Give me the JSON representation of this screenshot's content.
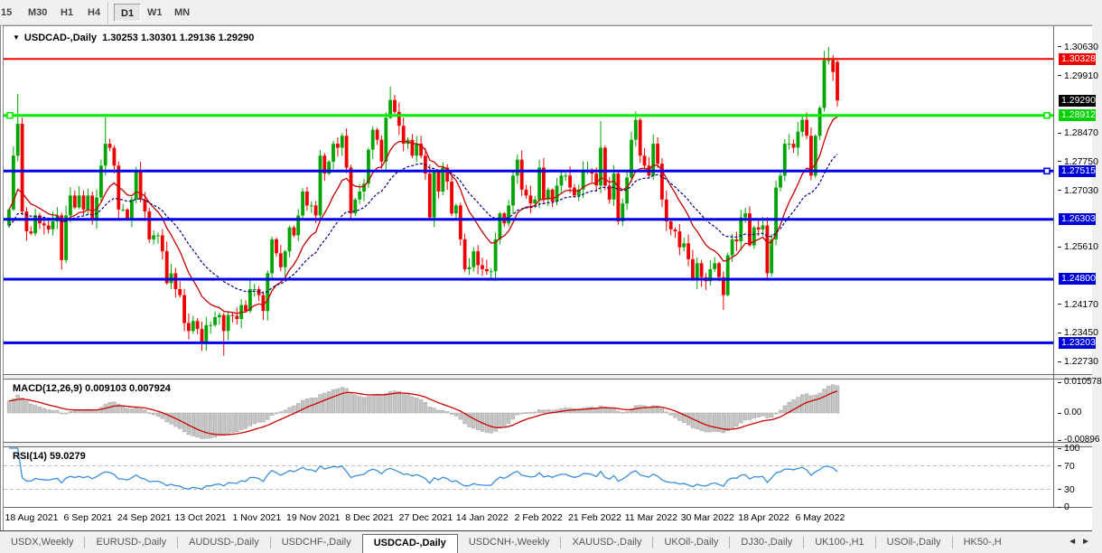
{
  "toolbar": {
    "timeframes": [
      {
        "label": "15",
        "active": false
      },
      {
        "label": "M30",
        "active": false
      },
      {
        "label": "H1",
        "active": false
      },
      {
        "label": "H4",
        "active": false
      },
      {
        "label": "D1",
        "active": true
      },
      {
        "label": "W1",
        "active": false
      },
      {
        "label": "MN",
        "active": false
      }
    ]
  },
  "header": {
    "symbol": "USDCAD-,Daily",
    "ohlc_text": "1.30253 1.30301 1.29136 1.29290"
  },
  "chart_data": {
    "type": "candlestick",
    "symbol": "USDCAD-",
    "timeframe": "Daily",
    "ohlc_values": {
      "open": 1.30253,
      "high": 1.30301,
      "low": 1.29136,
      "close": 1.2929
    },
    "closes": [
      1.2655,
      1.279,
      1.287,
      1.265,
      1.26,
      1.2595,
      1.264,
      1.262,
      1.2615,
      1.2605,
      1.2625,
      1.264,
      1.2528,
      1.264,
      1.269,
      1.266,
      1.269,
      1.2655,
      1.269,
      1.263,
      1.2685,
      1.2765,
      1.282,
      1.281,
      1.2765,
      1.2655,
      1.2655,
      1.263,
      1.268,
      1.275,
      1.268,
      1.265,
      1.258,
      1.259,
      1.259,
      1.255,
      1.247,
      1.2495,
      1.2455,
      1.244,
      1.237,
      1.235,
      1.2375,
      1.2355,
      1.232,
      1.2365,
      1.2365,
      1.2385,
      1.239,
      1.235,
      1.239,
      1.2388,
      1.238,
      1.2415,
      1.24,
      1.2455,
      1.2455,
      1.244,
      1.24,
      1.2495,
      1.258,
      1.2545,
      1.251,
      1.255,
      1.261,
      1.259,
      1.264,
      1.27,
      1.2665,
      1.2665,
      1.264,
      1.279,
      1.2745,
      1.2775,
      1.282,
      1.281,
      1.284,
      1.276,
      1.2645,
      1.268,
      1.27,
      1.272,
      1.2805,
      1.2855,
      1.283,
      1.2775,
      1.2885,
      1.293,
      1.29,
      1.2865,
      1.282,
      1.283,
      1.279,
      1.282,
      1.279,
      1.2745,
      1.2635,
      1.275,
      1.27,
      1.276,
      1.2725,
      1.2645,
      1.2665,
      1.258,
      1.2505,
      1.251,
      1.255,
      1.2515,
      1.2505,
      1.25,
      1.25,
      1.258,
      1.2645,
      1.262,
      1.2665,
      1.274,
      1.278,
      1.2705,
      1.269,
      1.267,
      1.268,
      1.276,
      1.268,
      1.2705,
      1.2675,
      1.2715,
      1.274,
      1.274,
      1.271,
      1.269,
      1.2705,
      1.2755,
      1.2755,
      1.2745,
      1.2715,
      1.281,
      1.2715,
      1.268,
      1.2745,
      1.2625,
      1.267,
      1.2735,
      1.283,
      1.288,
      1.279,
      1.2765,
      1.274,
      1.282,
      1.277,
      1.268,
      1.2625,
      1.2605,
      1.26,
      1.256,
      1.257,
      1.253,
      1.248,
      1.252,
      1.2485,
      1.2475,
      1.2505,
      1.252,
      1.2485,
      1.244,
      1.254,
      1.258,
      1.2575,
      1.2635,
      1.2645,
      1.2565,
      1.261,
      1.2605,
      1.2615,
      1.2495,
      1.258,
      1.271,
      1.274,
      1.282,
      1.282,
      1.281,
      1.285,
      1.288,
      1.284,
      1.274,
      1.284,
      1.291,
      1.303,
      1.303,
      1.3,
      1.2929
    ],
    "wick_overrides": {
      "2": {
        "h": 1.2945
      },
      "22": {
        "h": 1.2895
      },
      "49": {
        "l": 1.2288
      },
      "87": {
        "h": 1.2964
      },
      "135": {
        "h": 1.2877
      },
      "143": {
        "h": 1.2901
      },
      "163": {
        "l": 1.2403
      },
      "187": {
        "h": 1.3063
      },
      "189": {
        "o": 1.30253,
        "h": 1.30301,
        "l": 1.29136,
        "c": 1.2929
      }
    },
    "hlines": [
      {
        "price": 1.30328,
        "color": "#f00000",
        "width": 2,
        "markers": "none"
      },
      {
        "price": 1.28912,
        "color": "#00ee00",
        "width": 3,
        "markers": "both"
      },
      {
        "price": 1.27515,
        "color": "#0000e8",
        "width": 3,
        "markers": "right"
      },
      {
        "price": 1.26303,
        "color": "#0000e8",
        "width": 3,
        "markers": "none"
      },
      {
        "price": 1.248,
        "color": "#0000e8",
        "width": 3,
        "markers": "none"
      },
      {
        "price": 1.23203,
        "color": "#0000e8",
        "width": 3,
        "markers": "none"
      }
    ],
    "price_badges": [
      {
        "text": "1.30328",
        "price": 1.30328,
        "bg": "#f00000"
      },
      {
        "text": "1.29290",
        "price": 1.2929,
        "bg": "#000000"
      },
      {
        "text": "1.28912",
        "price": 1.28912,
        "bg": "#00d200"
      },
      {
        "text": "1.27515",
        "price": 1.27515,
        "bg": "#0000d8"
      },
      {
        "text": "1.26303",
        "price": 1.26303,
        "bg": "#0000d8"
      },
      {
        "text": "1.24800",
        "price": 1.248,
        "bg": "#0000d8"
      },
      {
        "text": "1.23203",
        "price": 1.23203,
        "bg": "#0000d8"
      }
    ],
    "y_axis_ticks": [
      {
        "text": "1.30630",
        "price": 1.3063
      },
      {
        "text": "1.29910",
        "price": 1.2991
      },
      {
        "text": "1.28470",
        "price": 1.2847
      },
      {
        "text": "1.27750",
        "price": 1.2775
      },
      {
        "text": "1.27030",
        "price": 1.2703
      },
      {
        "text": "1.25610",
        "price": 1.2561
      },
      {
        "text": "1.24170",
        "price": 1.2417
      },
      {
        "text": "1.23450",
        "price": 1.2345
      },
      {
        "text": "1.22730",
        "price": 1.2273
      }
    ],
    "x_axis_labels": [
      "18 Aug 2021",
      "6 Sep 2021",
      "24 Sep 2021",
      "13 Oct 2021",
      "1 Nov 2021",
      "19 Nov 2021",
      "8 Dec 2021",
      "27 Dec 2021",
      "14 Jan 2022",
      "2 Feb 2022",
      "21 Feb 2022",
      "11 Mar 2022",
      "30 Mar 2022",
      "18 Apr 2022",
      "6 May 2022"
    ],
    "moving_averages": [
      {
        "type": "EMA",
        "period": 12,
        "color": "#c80000",
        "style": "solid"
      },
      {
        "type": "EMA",
        "period": 26,
        "color": "#000088",
        "style": "dashed"
      }
    ],
    "macd": {
      "title": "MACD(12,26,9)",
      "value_main": "0.009103",
      "value_signal": "0.007924",
      "params": [
        12,
        26,
        9
      ],
      "scale_labels": [
        {
          "text": "0.010578",
          "value": 0.010578
        },
        {
          "text": "0.00",
          "value": 0
        },
        {
          "text": "-0.00896",
          "value": -0.00896
        }
      ],
      "hist_color": "#c6c6c6",
      "hist_border": "#a0a0a0",
      "signal_color": "#cc0000"
    },
    "rsi": {
      "title": "RSI(14)",
      "value": "59.0279",
      "period": 14,
      "levels": [
        70,
        30
      ],
      "scale_labels": [
        {
          "text": "100",
          "value": 100
        },
        {
          "text": "70",
          "value": 70
        },
        {
          "text": "30",
          "value": 30
        },
        {
          "text": "0",
          "value": 0
        }
      ],
      "line_color": "#3a8ede",
      "level_color": "#c0c0c0"
    },
    "colors": {
      "bull": "#00a500",
      "bear": "#ee0000",
      "background": "#ffffff",
      "border": "#6a6a6a"
    }
  },
  "tabbar": {
    "tabs": [
      {
        "label": "USDX,Weekly",
        "active": false
      },
      {
        "label": "EURUSD-,Daily",
        "active": false
      },
      {
        "label": "AUDUSD-,Daily",
        "active": false
      },
      {
        "label": "USDCHF-,Daily",
        "active": false
      },
      {
        "label": "USDCAD-,Daily",
        "active": true
      },
      {
        "label": "USDCNH-,Weekly",
        "active": false
      },
      {
        "label": "XAUUSD-,Daily",
        "active": false
      },
      {
        "label": "UKOil-,Daily",
        "active": false
      },
      {
        "label": "DJ30-,Daily",
        "active": false
      },
      {
        "label": "UK100-,H1",
        "active": false
      },
      {
        "label": "USOil-,Daily",
        "active": false
      },
      {
        "label": "HK50-,H",
        "active": false
      }
    ],
    "scroll_left": "◄",
    "scroll_right": "►"
  }
}
